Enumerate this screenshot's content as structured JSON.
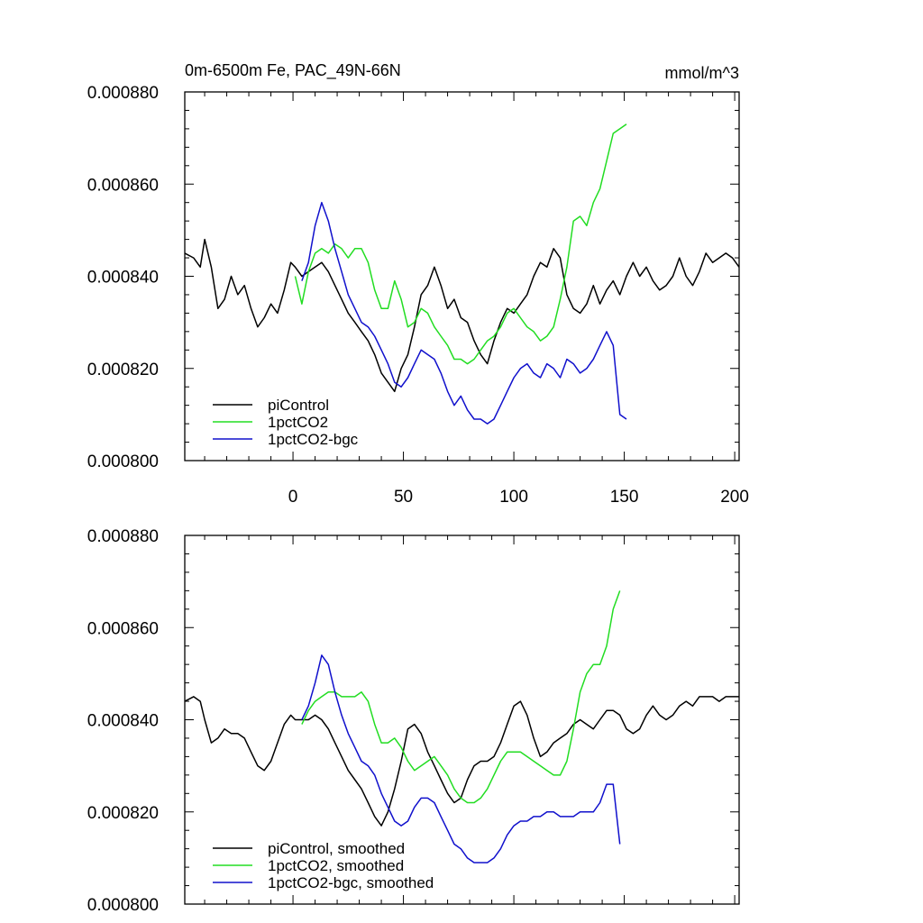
{
  "figure": {
    "title_left": "0m-6500m Fe, PAC_49N-66N",
    "title_right": "mmol/m^3"
  },
  "colors": {
    "piControl": "#000000",
    "1pctCO2": "#22dd22",
    "1pctCO2-bgc": "#1010cc"
  },
  "chart_data": [
    {
      "type": "line",
      "title": "0m-6500m Fe, PAC_49N-66N",
      "units": "mmol/m^3",
      "xlim": [
        -49,
        202
      ],
      "ylim": [
        0.0008,
        0.00088
      ],
      "x_ticks": [
        0,
        50,
        100,
        150,
        200
      ],
      "x_tick_labels": [
        "0",
        "50",
        "100",
        "150",
        "200"
      ],
      "y_ticks": [
        0.0008,
        0.00082,
        0.00084,
        0.00086,
        0.00088
      ],
      "y_tick_labels": [
        "0.000800",
        "0.000820",
        "0.000840",
        "0.000860",
        "0.000880"
      ],
      "legend": [
        "piControl",
        "1pctCO2",
        "1pctCO2-bgc"
      ],
      "legend_position": "bottom-left",
      "series": [
        {
          "name": "piControl",
          "x": [
            -49,
            -45,
            -42,
            -40,
            -37,
            -34,
            -31,
            -28,
            -25,
            -22,
            -19,
            -16,
            -13,
            -10,
            -7,
            -4,
            -1,
            1,
            4,
            7,
            10,
            13,
            16,
            19,
            22,
            25,
            28,
            31,
            34,
            37,
            40,
            43,
            46,
            49,
            52,
            55,
            58,
            61,
            64,
            67,
            70,
            73,
            76,
            79,
            82,
            85,
            88,
            91,
            94,
            97,
            100,
            103,
            106,
            109,
            112,
            115,
            118,
            121,
            124,
            127,
            130,
            133,
            136,
            139,
            142,
            145,
            148,
            151,
            154,
            157,
            160,
            163,
            166,
            169,
            172,
            175,
            178,
            181,
            184,
            187,
            190,
            193,
            196,
            199,
            202
          ],
          "y": [
            0.000845,
            0.000844,
            0.000842,
            0.000848,
            0.000842,
            0.000833,
            0.000835,
            0.00084,
            0.000836,
            0.000838,
            0.000833,
            0.000829,
            0.000831,
            0.000834,
            0.000832,
            0.000837,
            0.000843,
            0.000842,
            0.00084,
            0.000841,
            0.000842,
            0.000843,
            0.000841,
            0.000838,
            0.000835,
            0.000832,
            0.00083,
            0.000828,
            0.000826,
            0.000823,
            0.000819,
            0.000817,
            0.000815,
            0.00082,
            0.000823,
            0.000829,
            0.000836,
            0.000838,
            0.000842,
            0.000838,
            0.000833,
            0.000835,
            0.000831,
            0.00083,
            0.000826,
            0.000823,
            0.000821,
            0.000826,
            0.00083,
            0.000833,
            0.000832,
            0.000834,
            0.000836,
            0.00084,
            0.000843,
            0.000842,
            0.000846,
            0.000844,
            0.000836,
            0.000833,
            0.000832,
            0.000834,
            0.000838,
            0.000834,
            0.000837,
            0.000839,
            0.000836,
            0.00084,
            0.000843,
            0.00084,
            0.000842,
            0.000839,
            0.000837,
            0.000838,
            0.00084,
            0.000844,
            0.00084,
            0.000838,
            0.000841,
            0.000845,
            0.000843,
            0.000844,
            0.000845,
            0.000844,
            0.000842
          ]
        },
        {
          "name": "1pctCO2",
          "x": [
            1,
            4,
            7,
            10,
            13,
            16,
            19,
            22,
            25,
            28,
            31,
            34,
            37,
            40,
            43,
            46,
            49,
            52,
            55,
            58,
            61,
            64,
            67,
            70,
            73,
            76,
            79,
            82,
            85,
            88,
            91,
            94,
            97,
            100,
            103,
            106,
            109,
            112,
            115,
            118,
            121,
            124,
            127,
            130,
            133,
            136,
            139,
            142,
            145,
            148,
            151
          ],
          "y": [
            0.00084,
            0.000834,
            0.000841,
            0.000845,
            0.000846,
            0.000845,
            0.000847,
            0.000846,
            0.000844,
            0.000846,
            0.000846,
            0.000843,
            0.000837,
            0.000833,
            0.000833,
            0.000839,
            0.000835,
            0.000829,
            0.00083,
            0.000833,
            0.000832,
            0.000829,
            0.000827,
            0.000825,
            0.000822,
            0.000822,
            0.000821,
            0.000822,
            0.000824,
            0.000826,
            0.000827,
            0.000829,
            0.000832,
            0.000833,
            0.000831,
            0.000829,
            0.000828,
            0.000826,
            0.000827,
            0.000829,
            0.000835,
            0.000842,
            0.000852,
            0.000853,
            0.000851,
            0.000856,
            0.000859,
            0.000865,
            0.000871,
            0.000872,
            0.000873
          ]
        },
        {
          "name": "1pctCO2-bgc",
          "x": [
            4,
            7,
            10,
            13,
            16,
            19,
            22,
            25,
            28,
            31,
            34,
            37,
            40,
            43,
            46,
            49,
            52,
            55,
            58,
            61,
            64,
            67,
            70,
            73,
            76,
            79,
            82,
            85,
            88,
            91,
            94,
            97,
            100,
            103,
            106,
            109,
            112,
            115,
            118,
            121,
            124,
            127,
            130,
            133,
            136,
            139,
            142,
            145,
            148,
            151
          ],
          "y": [
            0.000839,
            0.000843,
            0.000851,
            0.000856,
            0.000852,
            0.000846,
            0.000841,
            0.000836,
            0.000833,
            0.00083,
            0.000829,
            0.000827,
            0.000824,
            0.000821,
            0.000817,
            0.000816,
            0.000818,
            0.000821,
            0.000824,
            0.000823,
            0.000822,
            0.000819,
            0.000815,
            0.000812,
            0.000814,
            0.000811,
            0.000809,
            0.000809,
            0.000808,
            0.000809,
            0.000812,
            0.000815,
            0.000818,
            0.00082,
            0.000821,
            0.000819,
            0.000818,
            0.000821,
            0.00082,
            0.000818,
            0.000822,
            0.000821,
            0.000819,
            0.00082,
            0.000822,
            0.000825,
            0.000828,
            0.000825,
            0.00081,
            0.000809
          ]
        }
      ]
    },
    {
      "type": "line",
      "title": "",
      "xlim": [
        -49,
        202
      ],
      "ylim": [
        0.0008,
        0.00088
      ],
      "x_ticks": [
        0,
        50,
        100,
        150,
        200
      ],
      "y_ticks": [
        0.0008,
        0.00082,
        0.00084,
        0.00086,
        0.00088
      ],
      "y_tick_labels": [
        "0.000800",
        "0.000820",
        "0.000840",
        "0.000860",
        "0.000880"
      ],
      "legend": [
        "piControl, smoothed",
        "1pctCO2, smoothed",
        "1pctCO2-bgc, smoothed"
      ],
      "legend_position": "bottom-left",
      "series": [
        {
          "name": "piControl, smoothed",
          "x": [
            -49,
            -45,
            -42,
            -40,
            -37,
            -34,
            -31,
            -28,
            -25,
            -22,
            -19,
            -16,
            -13,
            -10,
            -7,
            -4,
            -1,
            1,
            4,
            7,
            10,
            13,
            16,
            19,
            22,
            25,
            28,
            31,
            34,
            37,
            40,
            43,
            46,
            49,
            52,
            55,
            58,
            61,
            64,
            67,
            70,
            73,
            76,
            79,
            82,
            85,
            88,
            91,
            94,
            97,
            100,
            103,
            106,
            109,
            112,
            115,
            118,
            121,
            124,
            127,
            130,
            133,
            136,
            139,
            142,
            145,
            148,
            151,
            154,
            157,
            160,
            163,
            166,
            169,
            172,
            175,
            178,
            181,
            184,
            187,
            190,
            193,
            196,
            199,
            202
          ],
          "y": [
            0.000844,
            0.000845,
            0.000844,
            0.00084,
            0.000835,
            0.000836,
            0.000838,
            0.000837,
            0.000837,
            0.000836,
            0.000833,
            0.00083,
            0.000829,
            0.000831,
            0.000835,
            0.000839,
            0.000841,
            0.00084,
            0.00084,
            0.00084,
            0.000841,
            0.00084,
            0.000838,
            0.000835,
            0.000832,
            0.000829,
            0.000827,
            0.000825,
            0.000822,
            0.000819,
            0.000817,
            0.00082,
            0.000825,
            0.000831,
            0.000838,
            0.000839,
            0.000837,
            0.000833,
            0.00083,
            0.000827,
            0.000824,
            0.000822,
            0.000823,
            0.000827,
            0.00083,
            0.000831,
            0.000831,
            0.000832,
            0.000835,
            0.000839,
            0.000843,
            0.000844,
            0.000841,
            0.000836,
            0.000832,
            0.000833,
            0.000835,
            0.000836,
            0.000837,
            0.000839,
            0.00084,
            0.000839,
            0.000838,
            0.00084,
            0.000842,
            0.000842,
            0.000841,
            0.000838,
            0.000837,
            0.000838,
            0.000841,
            0.000843,
            0.000841,
            0.00084,
            0.000841,
            0.000843,
            0.000844,
            0.000843,
            0.000845,
            0.000845,
            0.000845,
            0.000844,
            0.000845,
            0.000845,
            0.000845
          ]
        },
        {
          "name": "1pctCO2, smoothed",
          "x": [
            4,
            7,
            10,
            13,
            16,
            19,
            22,
            25,
            28,
            31,
            34,
            37,
            40,
            43,
            46,
            49,
            52,
            55,
            58,
            61,
            64,
            67,
            70,
            73,
            76,
            79,
            82,
            85,
            88,
            91,
            94,
            97,
            100,
            103,
            106,
            109,
            112,
            115,
            118,
            121,
            124,
            127,
            130,
            133,
            136,
            139,
            142,
            145,
            148
          ],
          "y": [
            0.000839,
            0.000842,
            0.000844,
            0.000845,
            0.000846,
            0.000846,
            0.000845,
            0.000845,
            0.000845,
            0.000846,
            0.000844,
            0.000839,
            0.000835,
            0.000835,
            0.000836,
            0.000834,
            0.000831,
            0.000829,
            0.00083,
            0.000831,
            0.000832,
            0.00083,
            0.000828,
            0.000825,
            0.000823,
            0.000822,
            0.000822,
            0.000823,
            0.000825,
            0.000828,
            0.000831,
            0.000833,
            0.000833,
            0.000833,
            0.000832,
            0.000831,
            0.00083,
            0.000829,
            0.000828,
            0.000828,
            0.000831,
            0.000838,
            0.000846,
            0.00085,
            0.000852,
            0.000852,
            0.000856,
            0.000864,
            0.000868
          ]
        },
        {
          "name": "1pctCO2-bgc, smoothed",
          "x": [
            4,
            7,
            10,
            13,
            16,
            19,
            22,
            25,
            28,
            31,
            34,
            37,
            40,
            43,
            46,
            49,
            52,
            55,
            58,
            61,
            64,
            67,
            70,
            73,
            76,
            79,
            82,
            85,
            88,
            91,
            94,
            97,
            100,
            103,
            106,
            109,
            112,
            115,
            118,
            121,
            124,
            127,
            130,
            133,
            136,
            139,
            142,
            145,
            148
          ],
          "y": [
            0.00084,
            0.000843,
            0.000848,
            0.000854,
            0.000852,
            0.000846,
            0.000841,
            0.000837,
            0.000834,
            0.000831,
            0.00083,
            0.000828,
            0.000824,
            0.000821,
            0.000818,
            0.000817,
            0.000818,
            0.000821,
            0.000823,
            0.000823,
            0.000822,
            0.000819,
            0.000816,
            0.000813,
            0.000812,
            0.00081,
            0.000809,
            0.000809,
            0.000809,
            0.00081,
            0.000812,
            0.000815,
            0.000817,
            0.000818,
            0.000818,
            0.000819,
            0.000819,
            0.00082,
            0.00082,
            0.000819,
            0.000819,
            0.000819,
            0.00082,
            0.00082,
            0.00082,
            0.000822,
            0.000826,
            0.000826,
            0.000813
          ]
        }
      ]
    }
  ]
}
